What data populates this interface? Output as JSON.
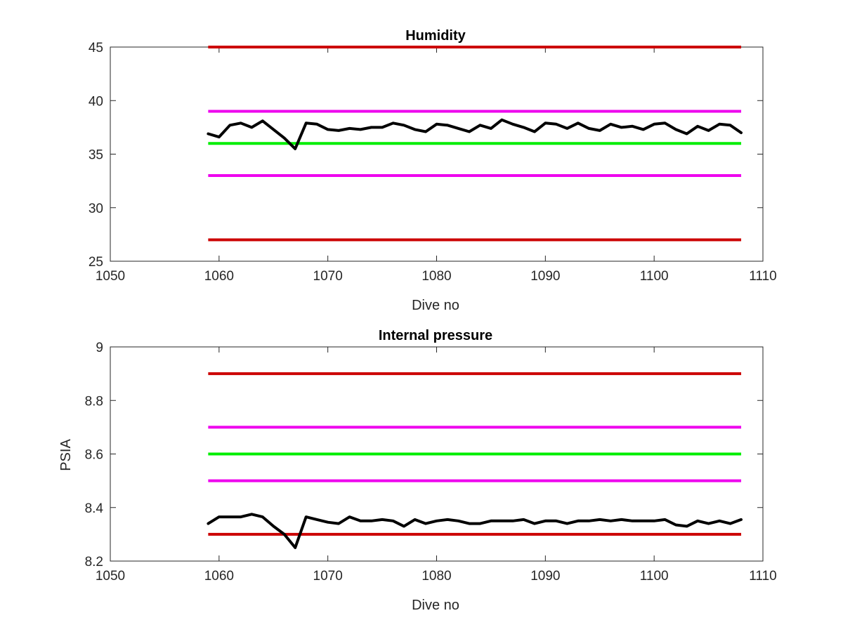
{
  "chart_data": [
    {
      "type": "line",
      "title": "Humidity",
      "xlabel": "Dive no",
      "ylabel": "",
      "xlim": [
        1050,
        1110
      ],
      "ylim": [
        25,
        45
      ],
      "xticks": [
        1050,
        1060,
        1070,
        1080,
        1090,
        1100,
        1110
      ],
      "yticks": [
        25,
        30,
        35,
        40,
        45
      ],
      "grid": false,
      "x": [
        1059,
        1060,
        1061,
        1062,
        1063,
        1064,
        1065,
        1066,
        1067,
        1068,
        1069,
        1070,
        1071,
        1072,
        1073,
        1074,
        1075,
        1076,
        1077,
        1078,
        1079,
        1080,
        1081,
        1082,
        1083,
        1084,
        1085,
        1086,
        1087,
        1088,
        1089,
        1090,
        1091,
        1092,
        1093,
        1094,
        1095,
        1096,
        1097,
        1098,
        1099,
        1100,
        1101,
        1102,
        1103,
        1104,
        1105,
        1106,
        1107,
        1108
      ],
      "series": [
        {
          "color": "#000000",
          "values": [
            36.9,
            36.6,
            37.7,
            37.9,
            37.5,
            38.1,
            37.3,
            36.5,
            35.5,
            37.9,
            37.8,
            37.3,
            37.2,
            37.4,
            37.3,
            37.5,
            37.5,
            37.9,
            37.7,
            37.3,
            37.1,
            37.8,
            37.7,
            37.4,
            37.1,
            37.7,
            37.4,
            38.2,
            37.8,
            37.5,
            37.1,
            37.9,
            37.8,
            37.4,
            37.9,
            37.4,
            37.2,
            37.8,
            37.5,
            37.6,
            37.3,
            37.8,
            37.9,
            37.3,
            36.9,
            37.6,
            37.2,
            37.8,
            37.7,
            37.0
          ]
        }
      ],
      "reference_lines": [
        {
          "y": 45,
          "color": "#cc0000",
          "x_range": [
            1059,
            1108
          ]
        },
        {
          "y": 39,
          "color": "#ee00ee",
          "x_range": [
            1059,
            1108
          ]
        },
        {
          "y": 36,
          "color": "#00ee00",
          "x_range": [
            1059,
            1108
          ]
        },
        {
          "y": 33,
          "color": "#ee00ee",
          "x_range": [
            1059,
            1108
          ]
        },
        {
          "y": 27,
          "color": "#cc0000",
          "x_range": [
            1059,
            1108
          ]
        }
      ]
    },
    {
      "type": "line",
      "title": "Internal pressure",
      "xlabel": "Dive no",
      "ylabel": "PSIA",
      "xlim": [
        1050,
        1110
      ],
      "ylim": [
        8.2,
        9
      ],
      "xticks": [
        1050,
        1060,
        1070,
        1080,
        1090,
        1100,
        1110
      ],
      "yticks": [
        8.2,
        8.4,
        8.6,
        8.8,
        9
      ],
      "yticklabels": [
        "8.2",
        "8.4",
        "8.6",
        "8.8",
        "9"
      ],
      "grid": false,
      "x": [
        1059,
        1060,
        1061,
        1062,
        1063,
        1064,
        1065,
        1066,
        1067,
        1068,
        1069,
        1070,
        1071,
        1072,
        1073,
        1074,
        1075,
        1076,
        1077,
        1078,
        1079,
        1080,
        1081,
        1082,
        1083,
        1084,
        1085,
        1086,
        1087,
        1088,
        1089,
        1090,
        1091,
        1092,
        1093,
        1094,
        1095,
        1096,
        1097,
        1098,
        1099,
        1100,
        1101,
        1102,
        1103,
        1104,
        1105,
        1106,
        1107,
        1108
      ],
      "series": [
        {
          "color": "#000000",
          "values": [
            8.34,
            8.365,
            8.365,
            8.365,
            8.375,
            8.365,
            8.33,
            8.3,
            8.25,
            8.365,
            8.355,
            8.345,
            8.34,
            8.365,
            8.35,
            8.35,
            8.355,
            8.35,
            8.33,
            8.355,
            8.34,
            8.35,
            8.355,
            8.35,
            8.34,
            8.34,
            8.35,
            8.35,
            8.35,
            8.355,
            8.34,
            8.35,
            8.35,
            8.34,
            8.35,
            8.35,
            8.355,
            8.35,
            8.355,
            8.35,
            8.35,
            8.35,
            8.355,
            8.335,
            8.33,
            8.35,
            8.34,
            8.35,
            8.34,
            8.355
          ]
        }
      ],
      "reference_lines": [
        {
          "y": 8.9,
          "color": "#cc0000",
          "x_range": [
            1059,
            1108
          ]
        },
        {
          "y": 8.7,
          "color": "#ee00ee",
          "x_range": [
            1059,
            1108
          ]
        },
        {
          "y": 8.6,
          "color": "#00ee00",
          "x_range": [
            1059,
            1108
          ]
        },
        {
          "y": 8.5,
          "color": "#ee00ee",
          "x_range": [
            1059,
            1108
          ]
        },
        {
          "y": 8.3,
          "color": "#cc0000",
          "x_range": [
            1059,
            1108
          ]
        }
      ]
    }
  ]
}
